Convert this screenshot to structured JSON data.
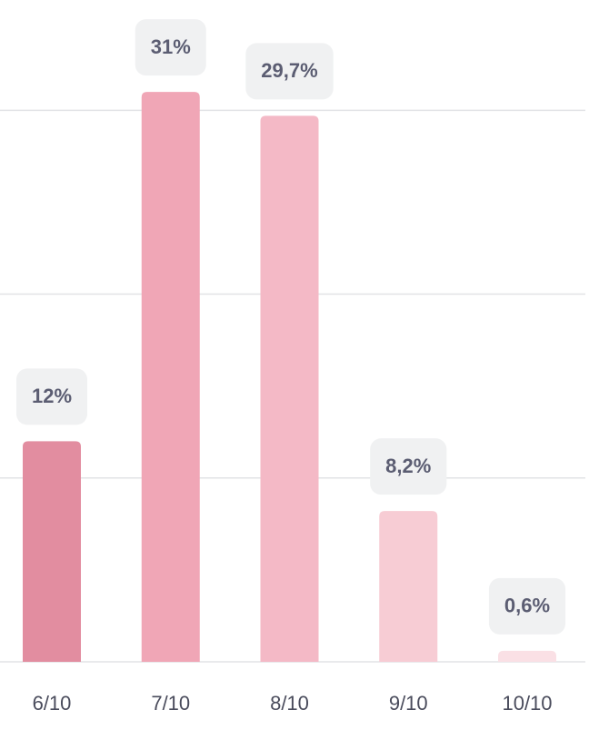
{
  "chart_data": {
    "type": "bar",
    "categories": [
      "6/10",
      "7/10",
      "8/10",
      "9/10",
      "10/10"
    ],
    "values": [
      12,
      31,
      29.7,
      8.2,
      0.6
    ],
    "value_labels": [
      "12%",
      "31%",
      "29,7%",
      "8,2%",
      "0,6%"
    ],
    "colors": [
      "#e28da0",
      "#f0a6b6",
      "#f4b9c6",
      "#f7ccd4",
      "#fae0e5"
    ],
    "ylim": [
      0,
      36
    ],
    "yticks": [
      0,
      10,
      20,
      30
    ],
    "grid": true
  }
}
